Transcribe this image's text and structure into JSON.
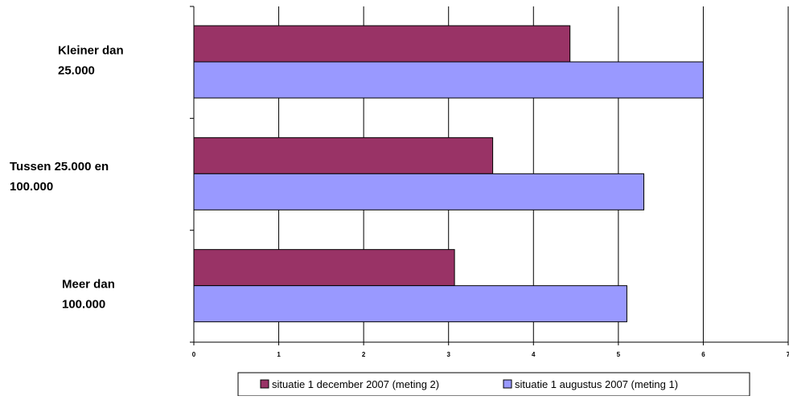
{
  "chart_data": {
    "type": "bar",
    "orientation": "horizontal",
    "categories": [
      [
        "Kleiner dan",
        "25.000"
      ],
      [
        "Tussen 25.000 en",
        "100.000"
      ],
      [
        "Meer dan",
        "100.000"
      ]
    ],
    "series": [
      {
        "name": "situatie 1 december 2007 (meting 2)",
        "values": [
          4.43,
          3.52,
          3.07
        ],
        "color": "#993366"
      },
      {
        "name": "situatie 1 augustus 2007 (meting 1)",
        "values": [
          6.0,
          5.3,
          5.1
        ],
        "color": "#9999FF"
      }
    ],
    "xlim": [
      0,
      7
    ],
    "xticks": [
      "0",
      "1",
      "2",
      "3",
      "4",
      "5",
      "6",
      "7"
    ],
    "grid": "vertical",
    "legend_position": "bottom"
  }
}
